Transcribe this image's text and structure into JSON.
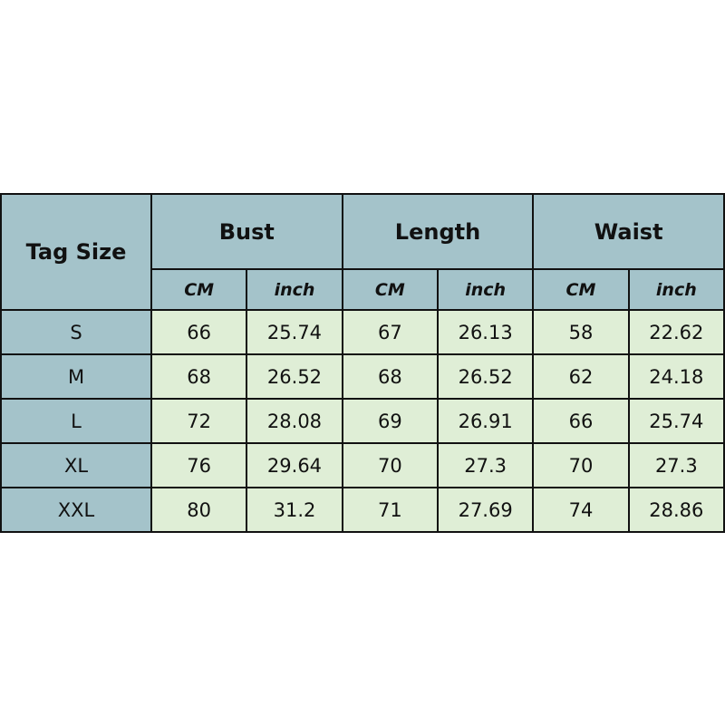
{
  "table": {
    "tag_header": "Tag Size",
    "groups": [
      "Bust",
      "Length",
      "Waist"
    ],
    "units": [
      "CM",
      "inch",
      "CM",
      "inch",
      "CM",
      "inch"
    ],
    "rows": [
      {
        "size": "S",
        "values": [
          "66",
          "25.74",
          "67",
          "26.13",
          "58",
          "22.62"
        ]
      },
      {
        "size": "M",
        "values": [
          "68",
          "26.52",
          "68",
          "26.52",
          "62",
          "24.18"
        ]
      },
      {
        "size": "L",
        "values": [
          "72",
          "28.08",
          "69",
          "26.91",
          "66",
          "25.74"
        ]
      },
      {
        "size": "XL",
        "values": [
          "76",
          "29.64",
          "70",
          "27.3",
          "70",
          "27.3"
        ]
      },
      {
        "size": "XXL",
        "values": [
          "80",
          "31.2",
          "71",
          "27.69",
          "74",
          "28.86"
        ]
      }
    ],
    "colors": {
      "header": "#a4c3ca",
      "cell": "#dfeed6"
    }
  }
}
